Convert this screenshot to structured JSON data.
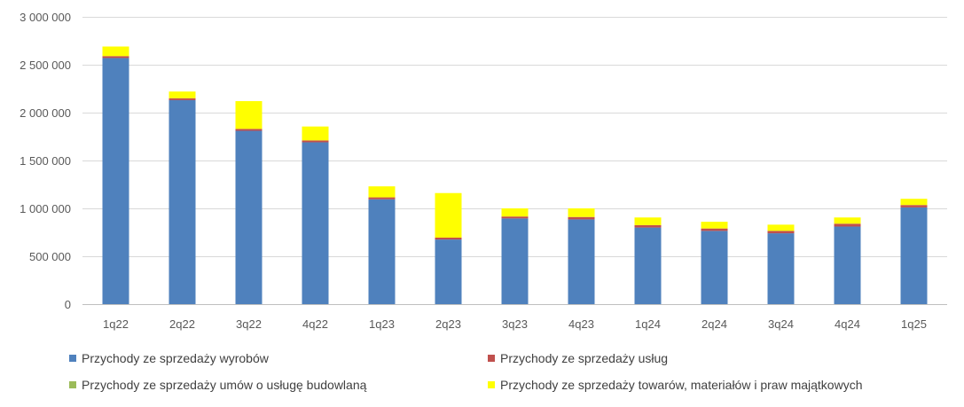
{
  "chart_data": {
    "type": "bar",
    "stacked": true,
    "categories": [
      "1q22",
      "2q22",
      "3q22",
      "4q22",
      "1q23",
      "2q23",
      "3q23",
      "4q23",
      "1q24",
      "2q24",
      "3q24",
      "4q24",
      "1q25"
    ],
    "series": [
      {
        "name": "Przychody ze sprzedaży wyrobów",
        "color": "#4F81BD",
        "values": [
          2570000,
          2130000,
          1810000,
          1690000,
          1095000,
          675000,
          895000,
          885000,
          800000,
          765000,
          740000,
          810000,
          1010000
        ]
      },
      {
        "name": "Przychody ze sprzedaży usług",
        "color": "#C0504D",
        "values": [
          20000,
          20000,
          20000,
          20000,
          20000,
          20000,
          20000,
          25000,
          25000,
          25000,
          25000,
          30000,
          25000
        ]
      },
      {
        "name": "Przychody ze sprzedaży umów o usługę budowlaną",
        "color": "#9BBB59",
        "values": [
          0,
          0,
          0,
          0,
          0,
          0,
          0,
          0,
          0,
          0,
          0,
          0,
          0
        ]
      },
      {
        "name": "Przychody ze sprzedaży towarów, materiałów i praw majątkowych",
        "color": "#FFFF00",
        "values": [
          100000,
          70000,
          290000,
          145000,
          115000,
          465000,
          85000,
          90000,
          80000,
          70000,
          65000,
          65000,
          65000
        ]
      }
    ],
    "ylim": [
      0,
      3000000
    ],
    "yticks": [
      0,
      500000,
      1000000,
      1500000,
      2000000,
      2500000,
      3000000
    ],
    "ytick_labels": [
      "0",
      "500 000",
      "1 000 000",
      "1 500 000",
      "2 000 000",
      "2 500 000",
      "3 000 000"
    ],
    "grid": true,
    "legend_position": "bottom",
    "title": "",
    "xlabel": "",
    "ylabel": ""
  }
}
